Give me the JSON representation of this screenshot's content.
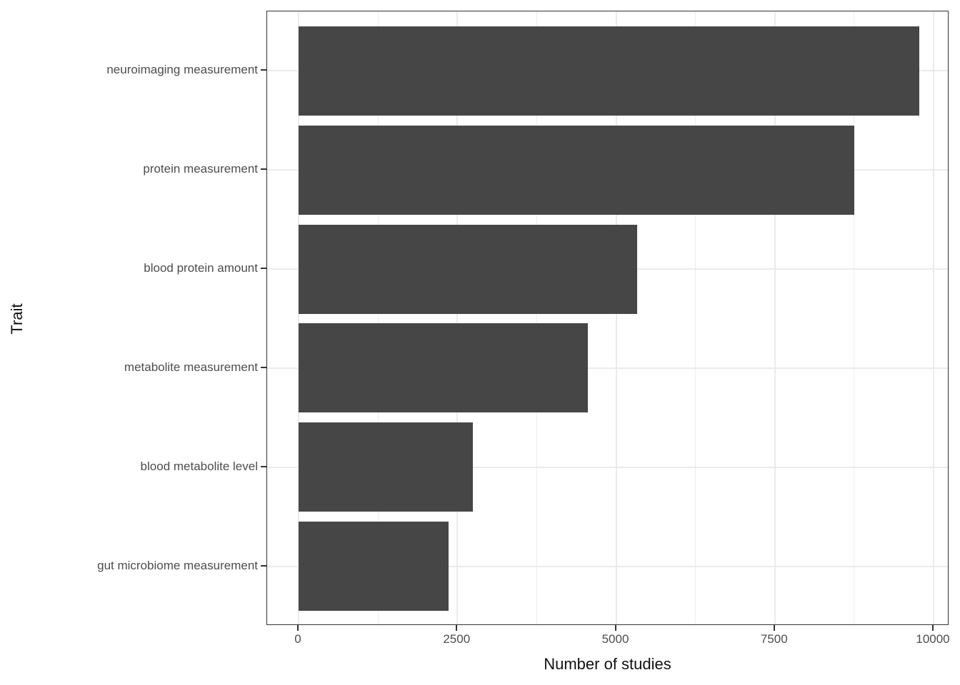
{
  "chart_data": {
    "type": "bar",
    "orientation": "horizontal",
    "title": "",
    "xlabel": "Number of studies",
    "ylabel": "Trait",
    "categories": [
      "neuroimaging measurement",
      "protein measurement",
      "blood protein amount",
      "metabolite measurement",
      "blood metabolite level",
      "gut microbiome measurement"
    ],
    "values": [
      9770,
      8755,
      5335,
      4560,
      2740,
      2360
    ],
    "xlim": [
      0,
      10000
    ],
    "x_ticks": [
      0,
      2500,
      5000,
      7500,
      10000
    ],
    "x_tick_labels": [
      "0",
      "2500",
      "5000",
      "7500",
      "10000"
    ],
    "x_minor_gridlines": [
      1250,
      3750,
      6250,
      8750
    ],
    "legend": "none",
    "grid": "vertical major+minor, horizontal major at category centers",
    "style": {
      "bar_color": "#464646",
      "panel_border_color": "#333333",
      "major_gridline_color": "#ebebeb",
      "minor_gridline_color": "#ededed",
      "tick_mark_color": "#333333",
      "tick_label_color": "#4d4d4d",
      "axis_title_color": "#111111",
      "background_color": "#ffffff"
    }
  }
}
